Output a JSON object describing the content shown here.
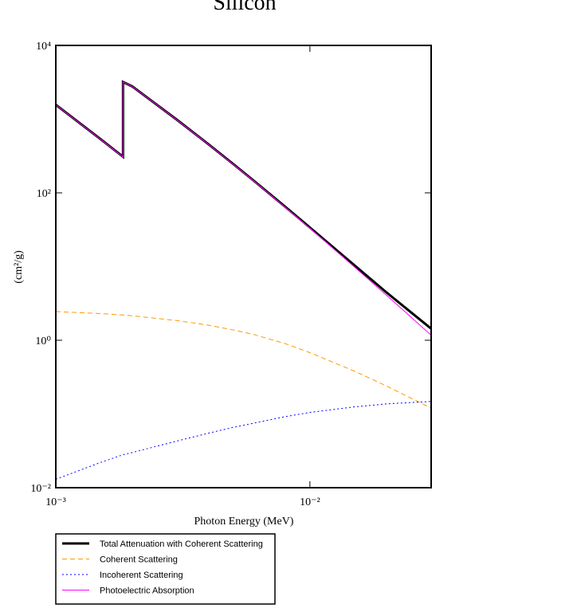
{
  "chart_data": {
    "type": "line",
    "title": "Silicon",
    "x_label": "Photon Energy (MeV)",
    "y_label": "(cm²/g)",
    "x": [
      0.001,
      0.0015,
      0.001839,
      0.001839,
      0.002,
      0.003,
      0.004,
      0.005,
      0.006,
      0.008,
      0.01,
      0.015,
      0.02,
      0.03
    ],
    "series": [
      {
        "name": "Total Attenuation with Coherent Scattering",
        "color": "#000000",
        "values": [
          1570,
          535.5,
          309.2,
          3192,
          2777,
          978.4,
          452.9,
          245.0,
          147.0,
          64.68,
          33.89,
          10.34,
          4.464,
          1.436
        ]
      },
      {
        "name": "Coherent Scattering",
        "color": "#ff9900",
        "values": [
          2.45,
          2.3,
          2.2,
          2.2,
          2.15,
          1.85,
          1.6,
          1.38,
          1.2,
          0.9,
          0.68,
          0.38,
          0.24,
          0.12
        ]
      },
      {
        "name": "Incoherent Scattering",
        "color": "#0000ff",
        "values": [
          0.013,
          0.022,
          0.028,
          0.028,
          0.03,
          0.043,
          0.055,
          0.066,
          0.075,
          0.092,
          0.105,
          0.125,
          0.137,
          0.148
        ]
      },
      {
        "name": "Photoelectric Absorption",
        "color": "#ff00ff",
        "values": [
          1565,
          533,
          307,
          3190,
          2775,
          976,
          451,
          243,
          146,
          63.7,
          33.1,
          9.8,
          4.1,
          1.17
        ]
      }
    ],
    "xlim": [
      0.001,
      0.03
    ],
    "ylim": [
      0.01,
      10000
    ],
    "log_x": true,
    "log_y": true,
    "xticks": [
      {
        "value": 0.001,
        "label": "10⁻³"
      },
      {
        "value": 0.01,
        "label": "10⁻²"
      }
    ],
    "yticks": [
      {
        "value": 0.01,
        "label": "10⁻²"
      },
      {
        "value": 1,
        "label": "10⁰"
      },
      {
        "value": 100,
        "label": "10²"
      },
      {
        "value": 10000,
        "label": "10⁴"
      }
    ],
    "legend": "bottom-left"
  }
}
